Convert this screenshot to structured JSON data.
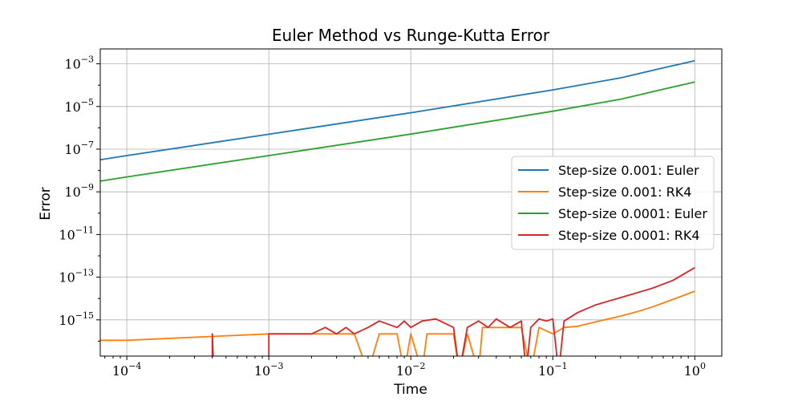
{
  "chart_data": {
    "type": "line",
    "title": "Euler Method vs Runge-Kutta Error",
    "xlabel": "Time",
    "ylabel": "Error",
    "xscale": "log",
    "yscale": "log",
    "xlim": [
      6.5e-05,
      1.55
    ],
    "ylim": [
      2e-17,
      0.005
    ],
    "grid": true,
    "legend_position": "center-right",
    "x_ticks": [
      {
        "base": "10",
        "exp": "−4",
        "value": 0.0001
      },
      {
        "base": "10",
        "exp": "−3",
        "value": 0.001
      },
      {
        "base": "10",
        "exp": "−2",
        "value": 0.01
      },
      {
        "base": "10",
        "exp": "−1",
        "value": 0.1
      },
      {
        "base": "10",
        "exp": "0",
        "value": 1
      }
    ],
    "y_ticks": [
      {
        "base": "10",
        "exp": "−15",
        "value": 1e-15
      },
      {
        "base": "10",
        "exp": "−13",
        "value": 1e-13
      },
      {
        "base": "10",
        "exp": "−11",
        "value": 1e-11
      },
      {
        "base": "10",
        "exp": "−9",
        "value": 1e-09
      },
      {
        "base": "10",
        "exp": "−7",
        "value": 1e-07
      },
      {
        "base": "10",
        "exp": "−5",
        "value": 1e-05
      },
      {
        "base": "10",
        "exp": "−3",
        "value": 0.001
      }
    ],
    "series": [
      {
        "name": "Step-size 0.001: Euler",
        "color": "#1f77b4",
        "points": [
          [
            6.5e-05,
            3.2e-08
          ],
          [
            0.0001,
            5e-08
          ],
          [
            0.001,
            5e-07
          ],
          [
            0.01,
            5.1e-06
          ],
          [
            0.1,
            6e-05
          ],
          [
            0.3,
            0.00022
          ],
          [
            0.6,
            0.00065
          ],
          [
            1.0,
            0.0014
          ]
        ]
      },
      {
        "name": "Step-size 0.001: RK4",
        "color": "#ff7f0e",
        "points": [
          [
            4e-05,
            1.1e-16
          ],
          [
            0.0001,
            1.1e-16
          ],
          [
            0.001,
            2.2e-16
          ],
          [
            0.002,
            2.2e-16
          ],
          [
            0.004,
            2.2e-16
          ],
          [
            0.005,
            0
          ],
          [
            0.006,
            2.2e-16
          ],
          [
            0.008,
            2.2e-16
          ],
          [
            0.009,
            0
          ],
          [
            0.01,
            2.2e-16
          ],
          [
            0.012,
            0
          ],
          [
            0.013,
            2.2e-16
          ],
          [
            0.02,
            2.2e-16
          ],
          [
            0.022,
            0
          ],
          [
            0.025,
            2.2e-16
          ],
          [
            0.03,
            0
          ],
          [
            0.032,
            4.4e-16
          ],
          [
            0.04,
            4.4e-16
          ],
          [
            0.05,
            4.4e-16
          ],
          [
            0.06,
            4.4e-16
          ],
          [
            0.07,
            0
          ],
          [
            0.08,
            4.4e-16
          ],
          [
            0.1,
            2.2e-16
          ],
          [
            0.12,
            4.4e-16
          ],
          [
            0.15,
            5e-16
          ],
          [
            0.2,
            8e-16
          ],
          [
            0.3,
            1.5e-15
          ],
          [
            0.4,
            2.5e-15
          ],
          [
            0.5,
            4e-15
          ],
          [
            0.7,
            9e-15
          ],
          [
            1.0,
            2.2e-14
          ]
        ]
      },
      {
        "name": "Step-size 0.0001: Euler",
        "color": "#2ca02c",
        "points": [
          [
            6.5e-05,
            3.2e-09
          ],
          [
            0.0001,
            5e-09
          ],
          [
            0.001,
            5e-08
          ],
          [
            0.01,
            5.1e-07
          ],
          [
            0.1,
            6e-06
          ],
          [
            0.3,
            2.2e-05
          ],
          [
            0.6,
            6.5e-05
          ],
          [
            1.0,
            0.00014
          ]
        ]
      },
      {
        "name": "Step-size 0.0001: RK4",
        "color": "#d62728",
        "points": [
          [
            0.0004,
            0
          ],
          [
            0.0004,
            2.2e-16
          ],
          [
            0.00041,
            0
          ],
          [
            0.001,
            0
          ],
          [
            0.001,
            2.2e-16
          ],
          [
            0.002,
            2.2e-16
          ],
          [
            0.0025,
            4.4e-16
          ],
          [
            0.003,
            2.2e-16
          ],
          [
            0.0035,
            4.4e-16
          ],
          [
            0.004,
            2.2e-16
          ],
          [
            0.005,
            4.4e-16
          ],
          [
            0.006,
            8.8e-16
          ],
          [
            0.008,
            4.4e-16
          ],
          [
            0.009,
            8.8e-16
          ],
          [
            0.01,
            4.4e-16
          ],
          [
            0.012,
            8.8e-16
          ],
          [
            0.015,
            1.1e-15
          ],
          [
            0.02,
            4.4e-16
          ],
          [
            0.022,
            0
          ],
          [
            0.025,
            4.4e-16
          ],
          [
            0.03,
            8.8e-16
          ],
          [
            0.035,
            4.4e-16
          ],
          [
            0.04,
            1.1e-15
          ],
          [
            0.05,
            4.4e-16
          ],
          [
            0.06,
            8.8e-16
          ],
          [
            0.065,
            0
          ],
          [
            0.07,
            4.4e-16
          ],
          [
            0.08,
            1.1e-15
          ],
          [
            0.09,
            8.8e-16
          ],
          [
            0.1,
            1.1e-15
          ],
          [
            0.11,
            0
          ],
          [
            0.12,
            8.8e-16
          ],
          [
            0.15,
            2.2e-15
          ],
          [
            0.2,
            5e-15
          ],
          [
            0.3,
            1.1e-14
          ],
          [
            0.5,
            3e-14
          ],
          [
            0.7,
            7e-14
          ],
          [
            1.0,
            2.8e-13
          ]
        ]
      }
    ]
  }
}
